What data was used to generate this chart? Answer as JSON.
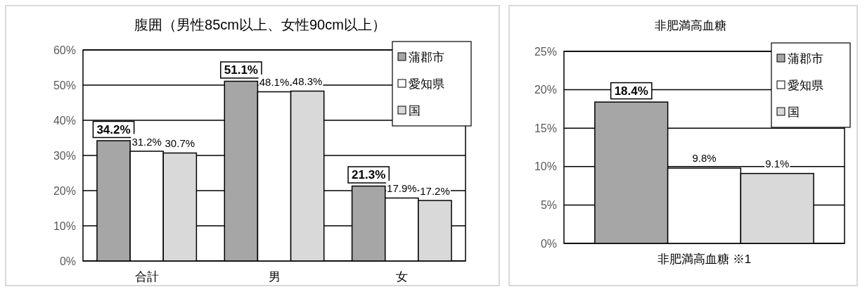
{
  "chart_data": [
    {
      "type": "bar",
      "title": "腹囲（男性85cm以上、女性90cm以上）",
      "categories": [
        "合計",
        "男",
        "女"
      ],
      "series": [
        {
          "name": "蒲郡市",
          "color": "#a6a6a6",
          "values": [
            34.2,
            51.1,
            21.3
          ],
          "value_labels": [
            "34.2%",
            "51.1%",
            "21.3%"
          ]
        },
        {
          "name": "愛知県",
          "color": "#ffffff",
          "values": [
            31.2,
            48.1,
            17.9
          ],
          "value_labels": [
            "31.2%",
            "48.1%",
            "17.9%"
          ]
        },
        {
          "name": "国",
          "color": "#d9d9d9",
          "values": [
            30.7,
            48.3,
            17.2
          ],
          "value_labels": [
            "30.7%",
            "48.3%",
            "17.2%"
          ]
        }
      ],
      "ylim": [
        0,
        60
      ],
      "yticks": [
        {
          "value": 0,
          "label": "0%"
        },
        {
          "value": 10,
          "label": "10%"
        },
        {
          "value": 20,
          "label": "20%"
        },
        {
          "value": 30,
          "label": "30%"
        },
        {
          "value": 40,
          "label": "40%"
        },
        {
          "value": 50,
          "label": "50%"
        },
        {
          "value": 60,
          "label": "60%"
        }
      ],
      "grid": "y",
      "legend": "top right"
    },
    {
      "type": "bar",
      "title": "非肥満高血糖",
      "categories": [
        "非肥満高血糖 ※1"
      ],
      "series": [
        {
          "name": "蒲郡市",
          "color": "#a6a6a6",
          "values": [
            18.4
          ],
          "value_labels": [
            "18.4%"
          ]
        },
        {
          "name": "愛知県",
          "color": "#ffffff",
          "values": [
            9.8
          ],
          "value_labels": [
            "9.8%"
          ]
        },
        {
          "name": "国",
          "color": "#d9d9d9",
          "values": [
            9.1
          ],
          "value_labels": [
            "9.1%"
          ]
        }
      ],
      "ylim": [
        0,
        25
      ],
      "yticks": [
        {
          "value": 0,
          "label": "0%"
        },
        {
          "value": 5,
          "label": "5%"
        },
        {
          "value": 10,
          "label": "10%"
        },
        {
          "value": 15,
          "label": "15%"
        },
        {
          "value": 20,
          "label": "20%"
        },
        {
          "value": 25,
          "label": "25%"
        }
      ],
      "grid": "y",
      "legend": "top right"
    }
  ]
}
